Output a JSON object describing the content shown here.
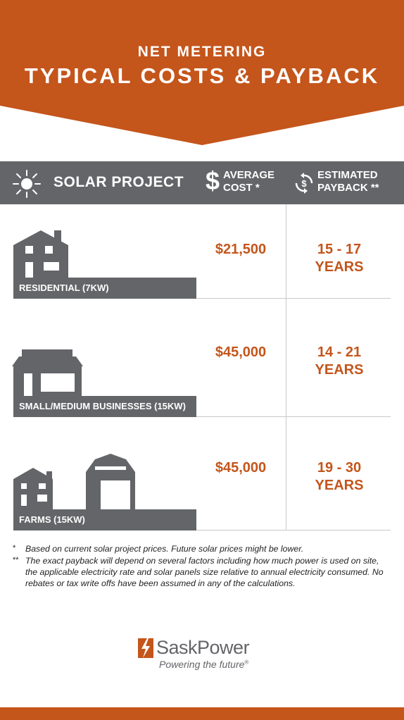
{
  "banner": {
    "subtitle": "NET METERING",
    "title": "TYPICAL COSTS & PAYBACK",
    "color": "#c4551b"
  },
  "header": {
    "project_label": "SOLAR PROJECT",
    "cost_symbol": "$",
    "cost_line1": "AVERAGE",
    "cost_line2": "COST *",
    "payback_line1": "ESTIMATED",
    "payback_line2": "PAYBACK **",
    "color": "#646569"
  },
  "rows": [
    {
      "label": "RESIDENTIAL (7KW)",
      "cost": "$21,500",
      "payback_line1": "15 - 17",
      "payback_line2": "YEARS",
      "icon": "house-icon"
    },
    {
      "label": "SMALL/MEDIUM BUSINESSES (15KW)",
      "cost": "$45,000",
      "payback_line1": "14 - 21",
      "payback_line2": "YEARS",
      "icon": "storefront-icon"
    },
    {
      "label": "FARMS (15KW)",
      "cost": "$45,000",
      "payback_line1": "19 - 30",
      "payback_line2": "YEARS",
      "icon": "farm-barn-icon"
    }
  ],
  "footnotes": [
    {
      "mark": "*",
      "text": "Based on current solar project prices. Future solar prices might be lower."
    },
    {
      "mark": "**",
      "text": "The exact payback will depend on several factors including how much power is used on site, the applicable electricity rate and solar panels size relative to annual electricity consumed. No rebates or tax write offs have been assumed in any of the calculations."
    }
  ],
  "logo": {
    "name": "SaskPower",
    "tagline": "Powering the future",
    "registered": "®"
  },
  "accent": "#c4551b"
}
